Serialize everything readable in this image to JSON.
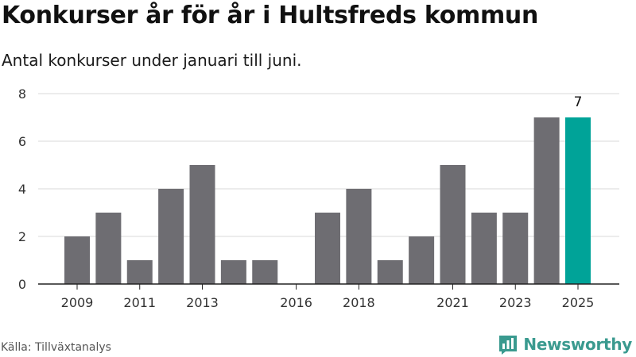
{
  "header": {
    "title": "Konkurser år för år i Hultsfreds kommun",
    "subtitle": "Antal konkurser under januari till juni."
  },
  "footer": {
    "source": "Källa: Tillväxtanalys",
    "brand": "Newsworthy",
    "brand_icon": "bar-chart-logo-icon",
    "brand_color": "#3a9a8f"
  },
  "colors": {
    "bar": "#6e6d72",
    "highlight": "#00a398",
    "grid": "#d8d8d8",
    "axis": "#222222"
  },
  "chart_data": {
    "type": "bar",
    "categories": [
      2009,
      2010,
      2011,
      2012,
      2013,
      2014,
      2015,
      2016,
      2017,
      2018,
      2019,
      2020,
      2021,
      2022,
      2023,
      2024,
      2025
    ],
    "values": [
      2,
      3,
      1,
      4,
      5,
      1,
      1,
      0,
      3,
      4,
      1,
      2,
      5,
      3,
      3,
      7,
      7
    ],
    "x_tick_labels": [
      "2009",
      "2011",
      "2013",
      "2016",
      "2018",
      "2021",
      "2023",
      "2025"
    ],
    "yticks": [
      0,
      2,
      4,
      6,
      8
    ],
    "ylim": [
      0,
      8
    ],
    "xlabel": "",
    "ylabel": "",
    "grid": true,
    "highlight_category": 2025,
    "data_labels": [
      {
        "category": 2025,
        "label": "7"
      }
    ]
  }
}
